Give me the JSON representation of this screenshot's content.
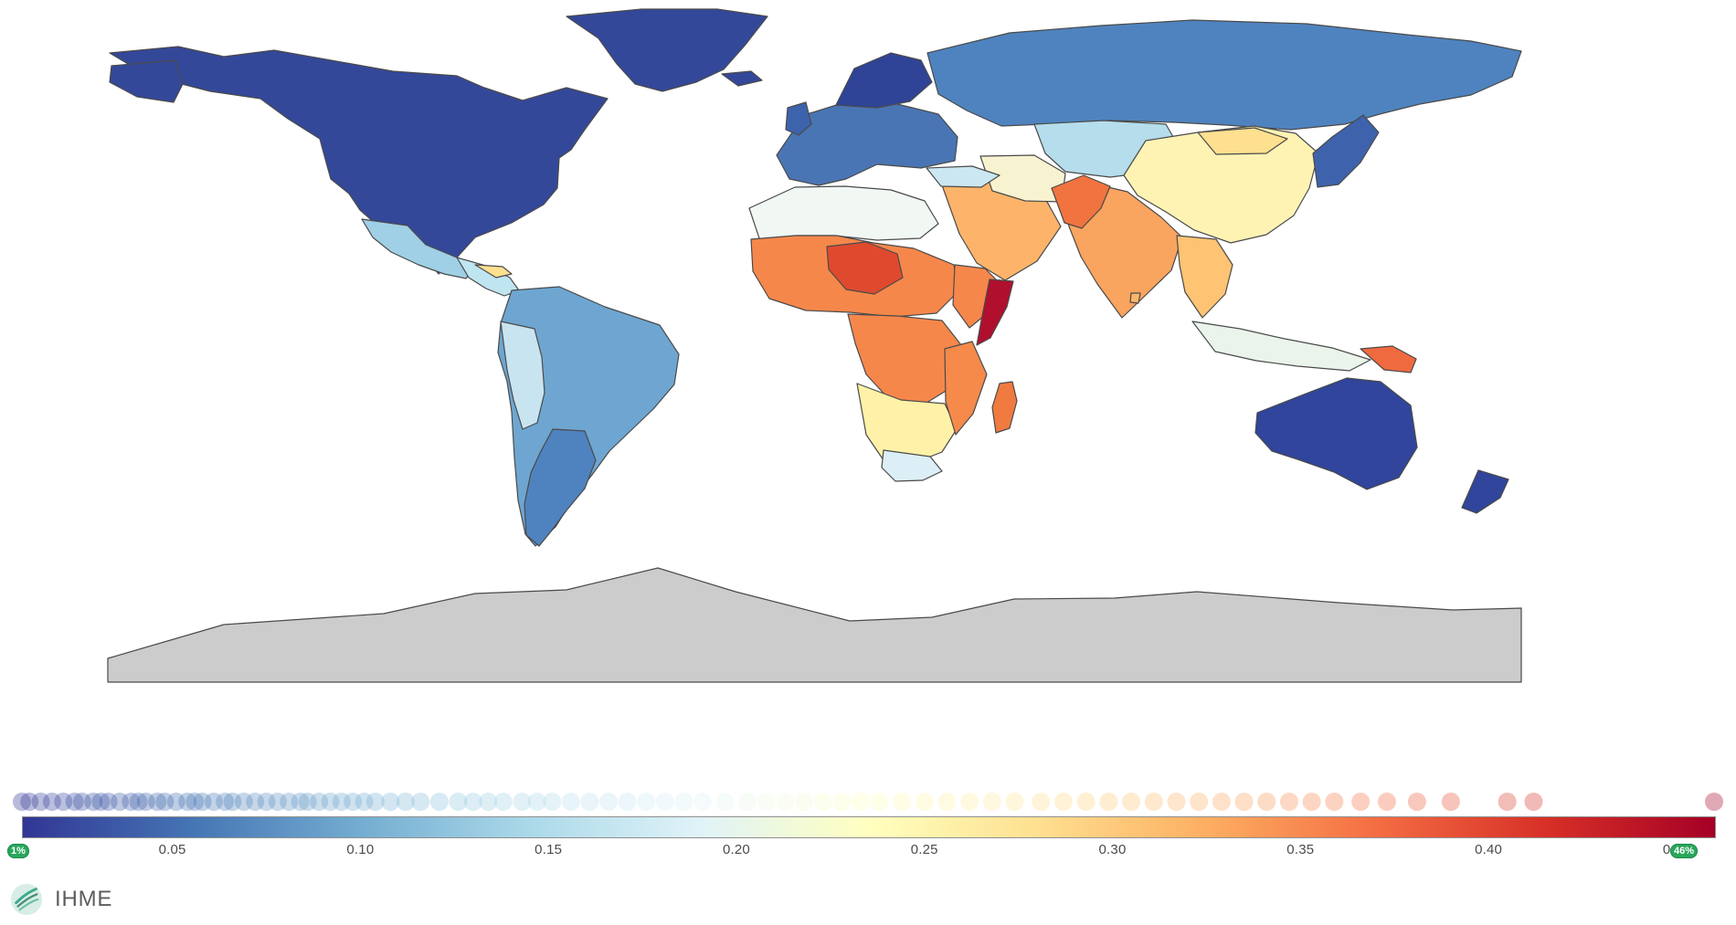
{
  "map": {
    "scale_min_label": "1%",
    "scale_max_label": "46%",
    "antarctica_fill": "#cccccc"
  },
  "legend": {
    "ticks": [
      "0.05",
      "0.10",
      "0.15",
      "0.20",
      "0.25",
      "0.30",
      "0.35",
      "0.40",
      "0.45"
    ],
    "colors": [
      "#313695",
      "#4575b4",
      "#74add1",
      "#abd9e9",
      "#e0f3f8",
      "#ffffbf",
      "#fee090",
      "#fdae61",
      "#f46d43",
      "#d73027",
      "#a50026"
    ]
  },
  "brand": {
    "name": "IHME"
  }
}
